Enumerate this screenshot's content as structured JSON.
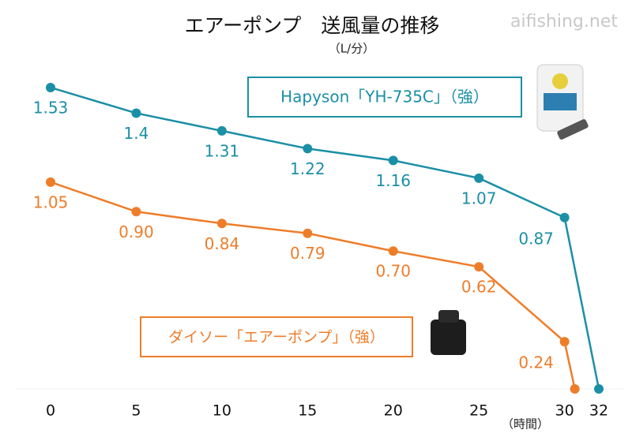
{
  "chart_data": {
    "type": "line",
    "title": "エアーポンプ　送風量の推移",
    "subtitle": "（L/分）",
    "watermark": "aifishing.net",
    "x_label": "（時間）",
    "xlim": [
      0,
      32
    ],
    "xticks": [
      0,
      5,
      10,
      15,
      20,
      25,
      30,
      32
    ],
    "ylim": [
      0,
      1.6
    ],
    "series": [
      {
        "name": "Hapyson「YH-735C」（強）",
        "color": "#1b8fa6",
        "x": [
          0,
          5,
          10,
          15,
          20,
          25,
          30,
          32
        ],
        "values": [
          1.53,
          1.4,
          1.31,
          1.22,
          1.16,
          1.07,
          0.87,
          0
        ],
        "value_labels": [
          "1.53",
          "1.4",
          "1.31",
          "1.22",
          "1.16",
          "1.07",
          "0.87",
          null
        ]
      },
      {
        "name": "ダイソー「エアーポンプ」（強）",
        "color": "#ee7d2a",
        "x": [
          0,
          5,
          10,
          15,
          20,
          25,
          30,
          30.6
        ],
        "values": [
          1.05,
          0.9,
          0.84,
          0.79,
          0.7,
          0.62,
          0.24,
          0
        ],
        "value_labels": [
          "1.05",
          "0.90",
          "0.84",
          "0.79",
          "0.70",
          "0.62",
          "0.24",
          null
        ]
      }
    ]
  }
}
